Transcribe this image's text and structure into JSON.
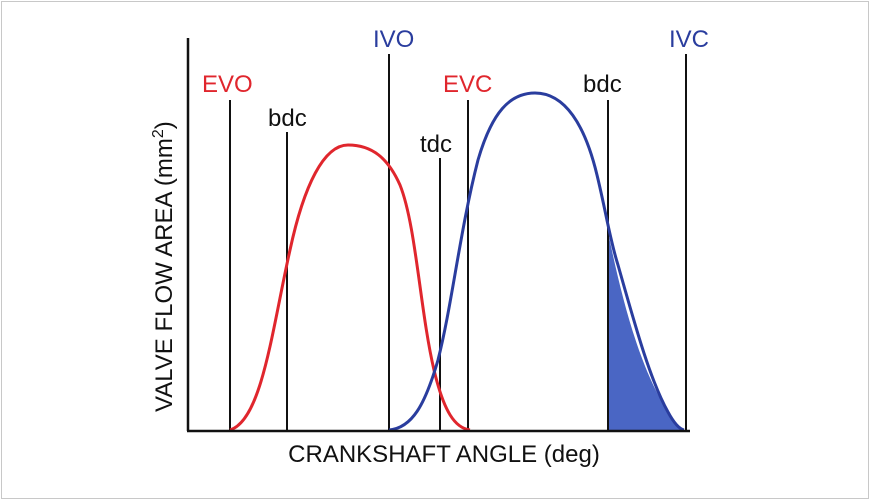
{
  "diagram": {
    "x_axis_label": "CRANKSHAFT ANGLE (deg)",
    "y_axis_label_main": "VALVE FLOW AREA (mm",
    "y_axis_label_sup": "2",
    "y_axis_label_close": ")",
    "colors": {
      "exhaust": "#e0262d",
      "intake": "#2a3d9e",
      "shade": "#4a66c4",
      "axis": "#111111",
      "event_line": "#111111",
      "frame": "#c8c8c8"
    },
    "event_labels": {
      "evo": "EVO",
      "bdc_1": "bdc",
      "ivo": "IVO",
      "tdc": "tdc",
      "evc": "EVC",
      "bdc_2": "bdc",
      "ivc": "IVC"
    },
    "curves": [
      "exhaust-valve-curve",
      "intake-valve-curve"
    ],
    "shaded_region": "intake flow area after bdc"
  }
}
